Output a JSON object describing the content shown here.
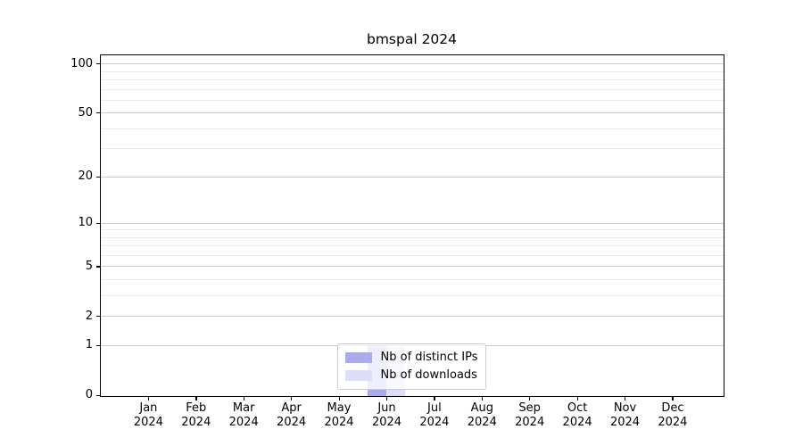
{
  "chart_data": {
    "type": "bar",
    "title": "bmspal 2024",
    "categories": [
      "Jan 2024",
      "Feb 2024",
      "Mar 2024",
      "Apr 2024",
      "May 2024",
      "Jun 2024",
      "Jul 2024",
      "Aug 2024",
      "Sep 2024",
      "Oct 2024",
      "Nov 2024",
      "Dec 2024"
    ],
    "series": [
      {
        "name": "Nb of distinct IPs",
        "color": "#aaaaee",
        "values": [
          0,
          0,
          0,
          0,
          0,
          1,
          0,
          0,
          0,
          0,
          0,
          0
        ]
      },
      {
        "name": "Nb of downloads",
        "color": "#ddddf8",
        "values": [
          0,
          0,
          0,
          0,
          0,
          1,
          0,
          0,
          0,
          0,
          0,
          0
        ]
      }
    ],
    "xlabel": "",
    "ylabel": "",
    "y_scale": "log1p",
    "y_ticks": [
      0,
      1,
      2,
      5,
      10,
      20,
      50,
      100
    ],
    "y_minor_ticks": [
      3,
      4,
      6,
      7,
      8,
      9,
      30,
      40,
      60,
      70,
      80,
      90
    ],
    "ylim": [
      0,
      112
    ],
    "grid": true,
    "legend_position": "lower center",
    "colors": {
      "axis": "#000000",
      "grid_major": "#cccccc",
      "grid_minor": "#e9e9e9",
      "legend_border": "#cccccc",
      "legend_background": "rgba(255,255,255,0.8)"
    }
  }
}
